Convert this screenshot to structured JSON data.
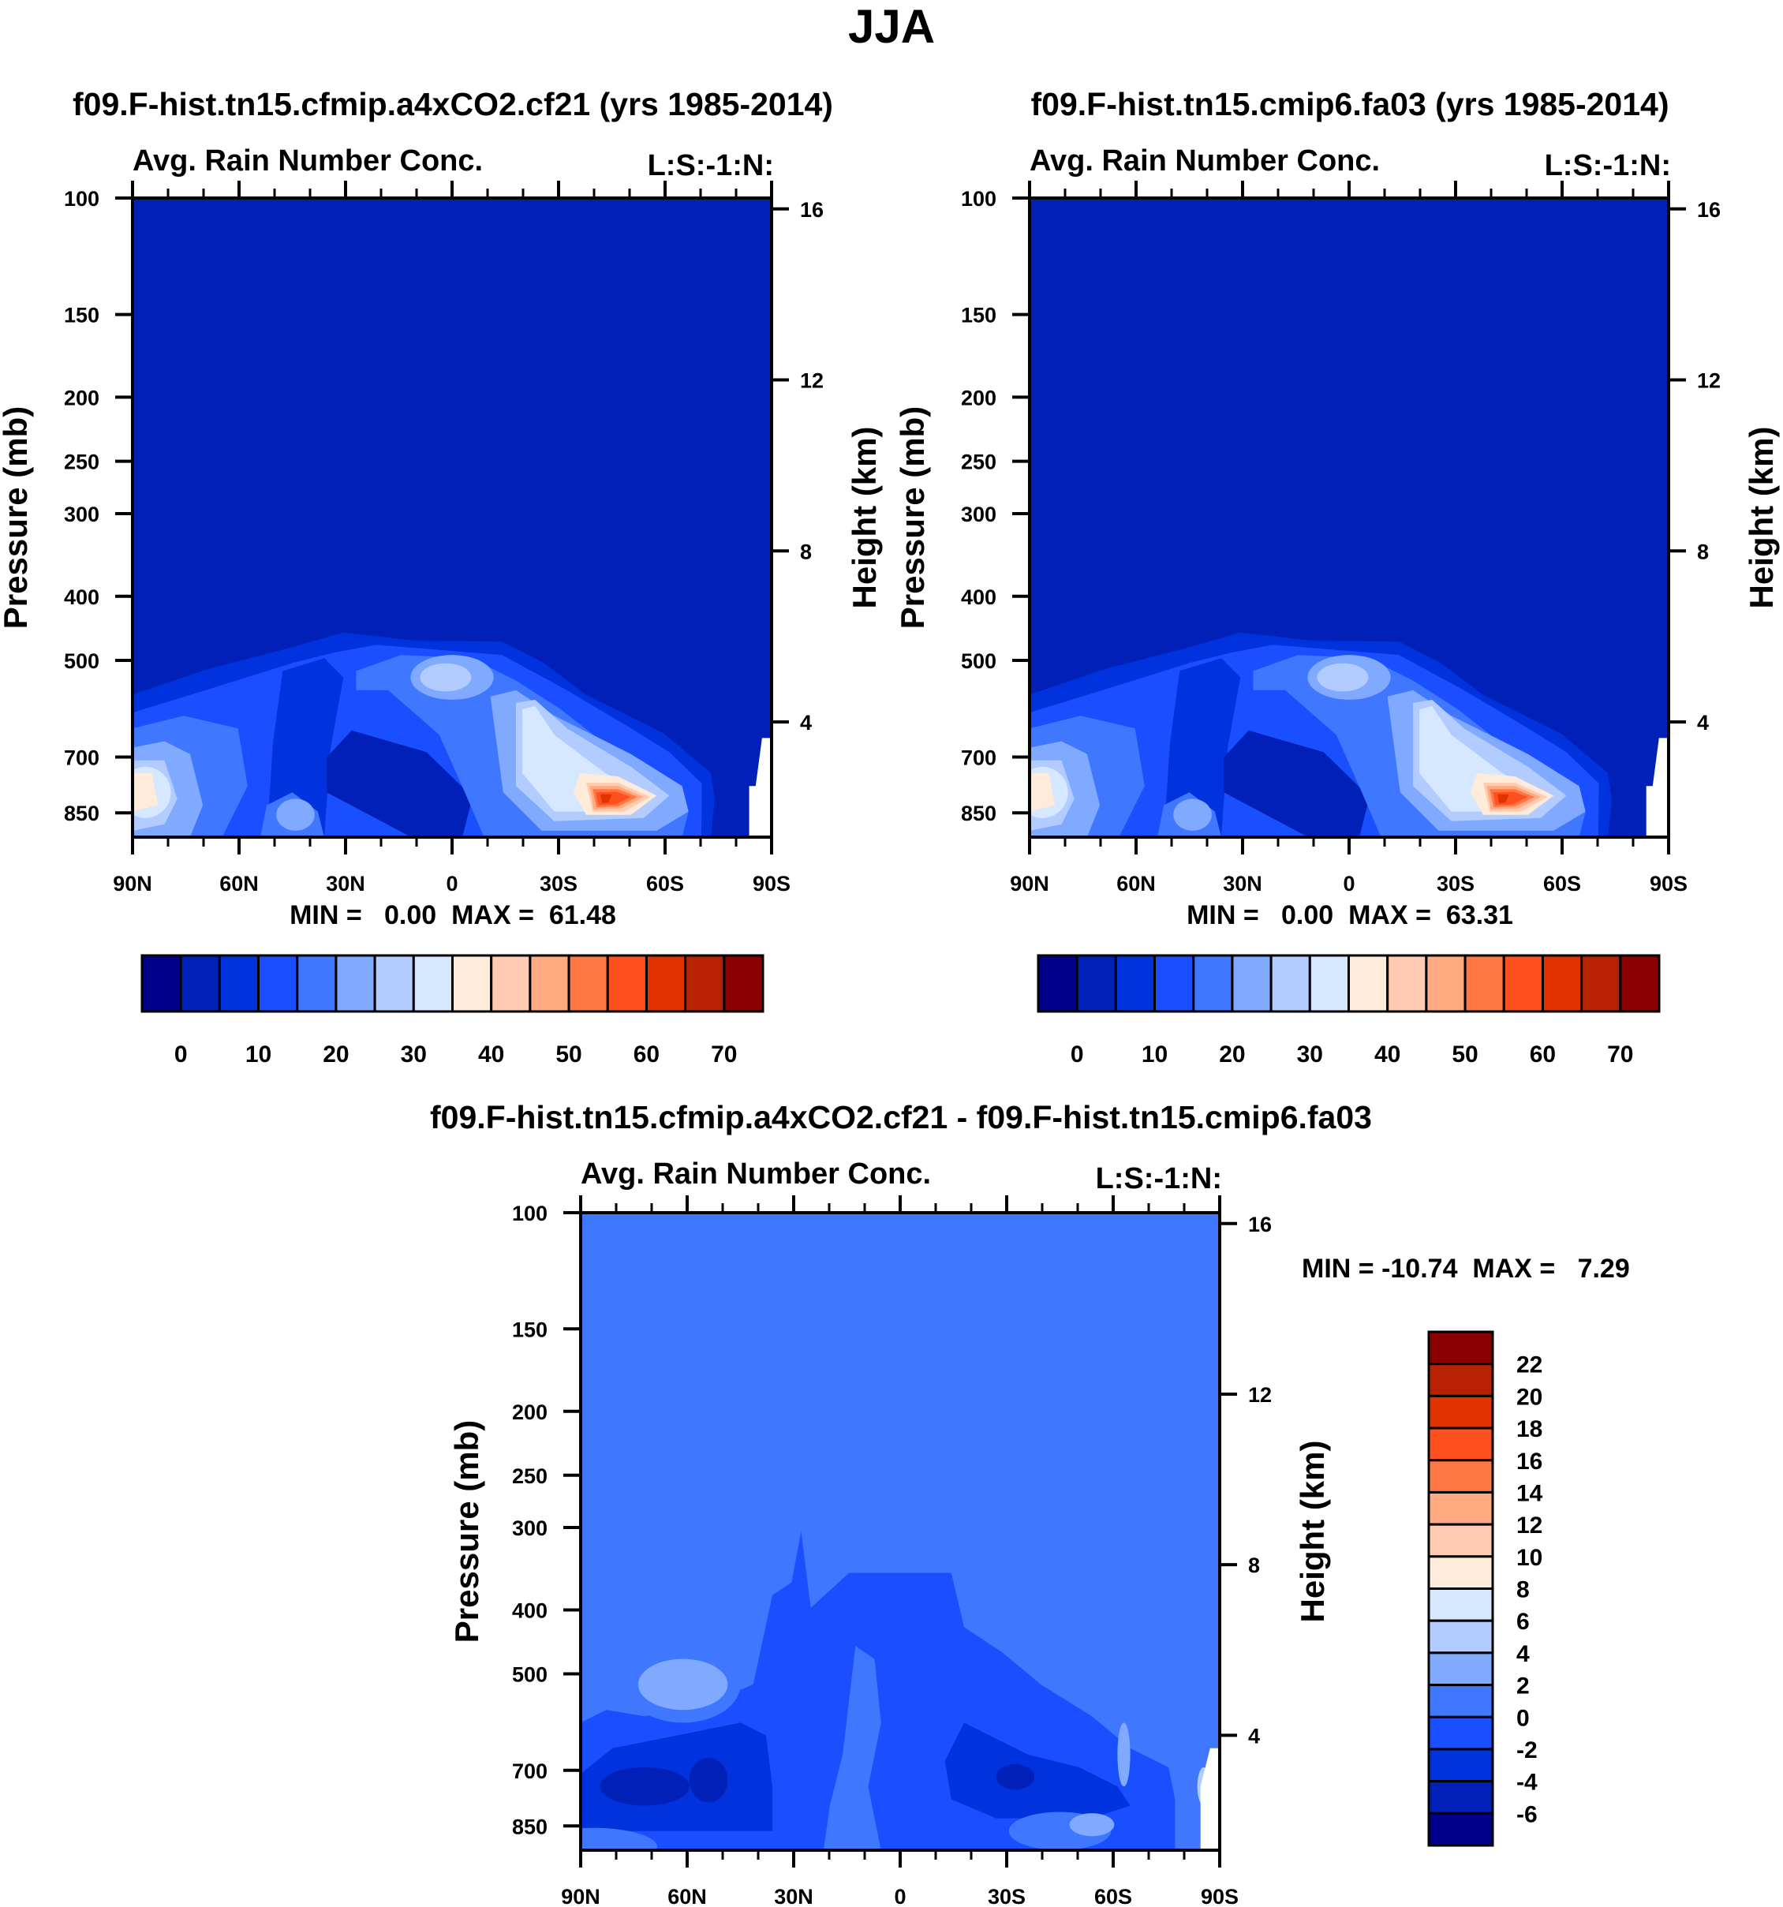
{
  "figure_title": "JJA",
  "chart_data": [
    {
      "type": "heatmap",
      "title": "f09.F-hist.tn15.cfmip.a4xCO2.cf21 (yrs 1985-2014)",
      "subtitle_left": "Avg. Rain Number Conc.",
      "subtitle_right": "L:S:-1:N:",
      "ylabel": "Pressure (mb)",
      "ylabel_right": "Height (km)",
      "x_tick_labels": [
        "90N",
        "60N",
        "30N",
        "0",
        "30S",
        "60S",
        "90S"
      ],
      "x_values": [
        90,
        60,
        30,
        0,
        -30,
        -60,
        -90
      ],
      "y_ticks": [
        100,
        150,
        200,
        250,
        300,
        400,
        500,
        700,
        850
      ],
      "y_right_ticks": [
        16,
        12,
        8,
        4
      ],
      "ylim": [
        100,
        925
      ],
      "stats_text": "MIN =   0.00  MAX =  61.48",
      "min": 0.0,
      "max": 61.48,
      "colorbar": {
        "orientation": "horizontal",
        "levels": [
          0,
          5,
          10,
          15,
          20,
          25,
          30,
          35,
          40,
          45,
          50,
          55,
          60,
          65,
          70
        ],
        "labels": [
          "0",
          "10",
          "20",
          "30",
          "40",
          "50",
          "60",
          "70"
        ]
      }
    },
    {
      "type": "heatmap",
      "title": "f09.F-hist.tn15.cmip6.fa03 (yrs 1985-2014)",
      "subtitle_left": "Avg. Rain Number Conc.",
      "subtitle_right": "L:S:-1:N:",
      "ylabel": "Pressure (mb)",
      "ylabel_right": "Height (km)",
      "x_tick_labels": [
        "90N",
        "60N",
        "30N",
        "0",
        "30S",
        "60S",
        "90S"
      ],
      "x_values": [
        90,
        60,
        30,
        0,
        -30,
        -60,
        -90
      ],
      "y_ticks": [
        100,
        150,
        200,
        250,
        300,
        400,
        500,
        700,
        850
      ],
      "y_right_ticks": [
        16,
        12,
        8,
        4
      ],
      "ylim": [
        100,
        925
      ],
      "stats_text": "MIN =   0.00  MAX =  63.31",
      "min": 0.0,
      "max": 63.31,
      "colorbar": {
        "orientation": "horizontal",
        "levels": [
          0,
          5,
          10,
          15,
          20,
          25,
          30,
          35,
          40,
          45,
          50,
          55,
          60,
          65,
          70
        ],
        "labels": [
          "0",
          "10",
          "20",
          "30",
          "40",
          "50",
          "60",
          "70"
        ]
      }
    },
    {
      "type": "heatmap",
      "title": "f09.F-hist.tn15.cfmip.a4xCO2.cf21 - f09.F-hist.tn15.cmip6.fa03",
      "subtitle_left": "Avg. Rain Number Conc.",
      "subtitle_right": "L:S:-1:N:",
      "ylabel": "Pressure (mb)",
      "ylabel_right": "Height (km)",
      "x_tick_labels": [
        "90N",
        "60N",
        "30N",
        "0",
        "30S",
        "60S",
        "90S"
      ],
      "x_values": [
        90,
        60,
        30,
        0,
        -30,
        -60,
        -90
      ],
      "y_ticks": [
        100,
        150,
        200,
        250,
        300,
        400,
        500,
        700,
        850
      ],
      "y_right_ticks": [
        16,
        12,
        8,
        4
      ],
      "ylim": [
        100,
        925
      ],
      "stats_text": "MIN = -10.74  MAX =   7.29",
      "min": -10.74,
      "max": 7.29,
      "colorbar": {
        "orientation": "vertical",
        "levels": [
          -6,
          -4,
          -2,
          0,
          2,
          4,
          6,
          8,
          10,
          12,
          14,
          16,
          18,
          20,
          22
        ],
        "labels": [
          "-6",
          "-4",
          "-2",
          "0",
          "2",
          "4",
          "6",
          "8",
          "10",
          "12",
          "14",
          "16",
          "18",
          "20",
          "22"
        ]
      }
    }
  ],
  "colors": [
    "#00008b",
    "#0020b8",
    "#0033dd",
    "#1a4fff",
    "#4077ff",
    "#80aaff",
    "#b3ccff",
    "#d6e8ff",
    "#ffebd9",
    "#ffccb3",
    "#ffaa80",
    "#ff7744",
    "#ff5020",
    "#e03300",
    "#b82200",
    "#8b0000"
  ]
}
